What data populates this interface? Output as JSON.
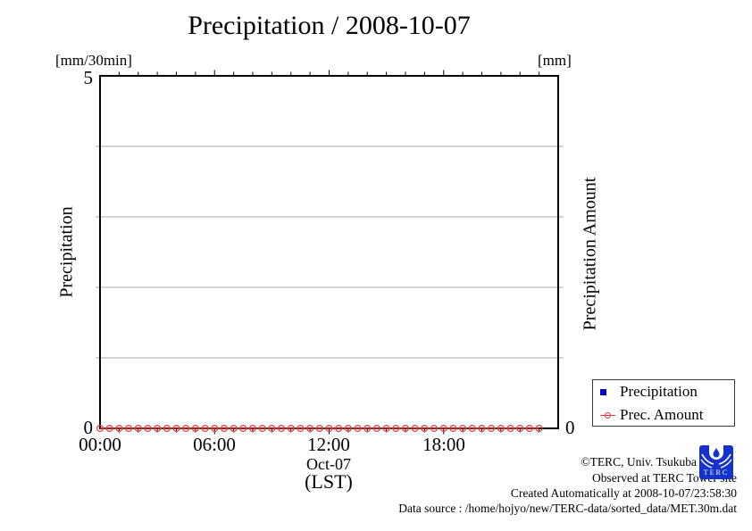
{
  "header": {
    "title": "Precipitation / 2008-10-07"
  },
  "axes": {
    "left_unit": "[mm/30min]",
    "right_unit": "[mm]",
    "left_label": "Precipitation",
    "right_label": "Precipitation Amount",
    "left_top_tick": "5",
    "left_bottom_tick": "0",
    "right_bottom_tick": "0",
    "x_ticks": [
      "00:00",
      "06:00",
      "12:00",
      "18:00"
    ],
    "x_date": "Oct-07",
    "x_timezone": "(LST)"
  },
  "legend": {
    "items": [
      {
        "label": "Precipitation",
        "marker": "square",
        "color": "#0000cd"
      },
      {
        "label": "Prec. Amount",
        "marker": "circle-line",
        "color": "#e23c3c"
      }
    ]
  },
  "footer": {
    "copyright": "©TERC, Univ. Tsukuba",
    "observed": "Observed at TERC Tower site",
    "created": "Created Automatically at 2008-10-07/23:58:30",
    "source": "Data source : /home/hojyo/new/TERC-data/sorted_data/MET.30m.dat",
    "logo_text": "TERC",
    "logo_color": "#1533cc"
  },
  "chart_data": {
    "type": "line",
    "title": "Precipitation / 2008-10-07",
    "xlabel": "Oct-07 (LST)",
    "x_hours_range": [
      0,
      24
    ],
    "x_major_tick_hours": [
      0,
      6,
      12,
      18,
      24
    ],
    "x_minor_tick_interval_hours": 1,
    "ylim_left": [
      0,
      5
    ],
    "ylim_labels_left": [
      "0",
      "5"
    ],
    "ylim_labels_right": [
      "0"
    ],
    "grid": "horizontal-gray",
    "grid_color": "#aaaaaa",
    "legend_position": "outside-right-bottom",
    "series": [
      {
        "name": "Precipitation",
        "axis": "left",
        "unit": "mm/30min",
        "marker": "filled-square",
        "color": "#0000cd",
        "values": []
      },
      {
        "name": "Prec. Amount",
        "axis": "right",
        "unit": "mm",
        "marker": "open-circle",
        "color": "#e23c3c",
        "start_hour": 0,
        "interval_hours": 0.5,
        "values": [
          0,
          0,
          0,
          0,
          0,
          0,
          0,
          0,
          0,
          0,
          0,
          0,
          0,
          0,
          0,
          0,
          0,
          0,
          0,
          0,
          0,
          0,
          0,
          0,
          0,
          0,
          0,
          0,
          0,
          0,
          0,
          0,
          0,
          0,
          0,
          0,
          0,
          0,
          0,
          0,
          0,
          0,
          0,
          0,
          0,
          0,
          0
        ]
      }
    ]
  }
}
